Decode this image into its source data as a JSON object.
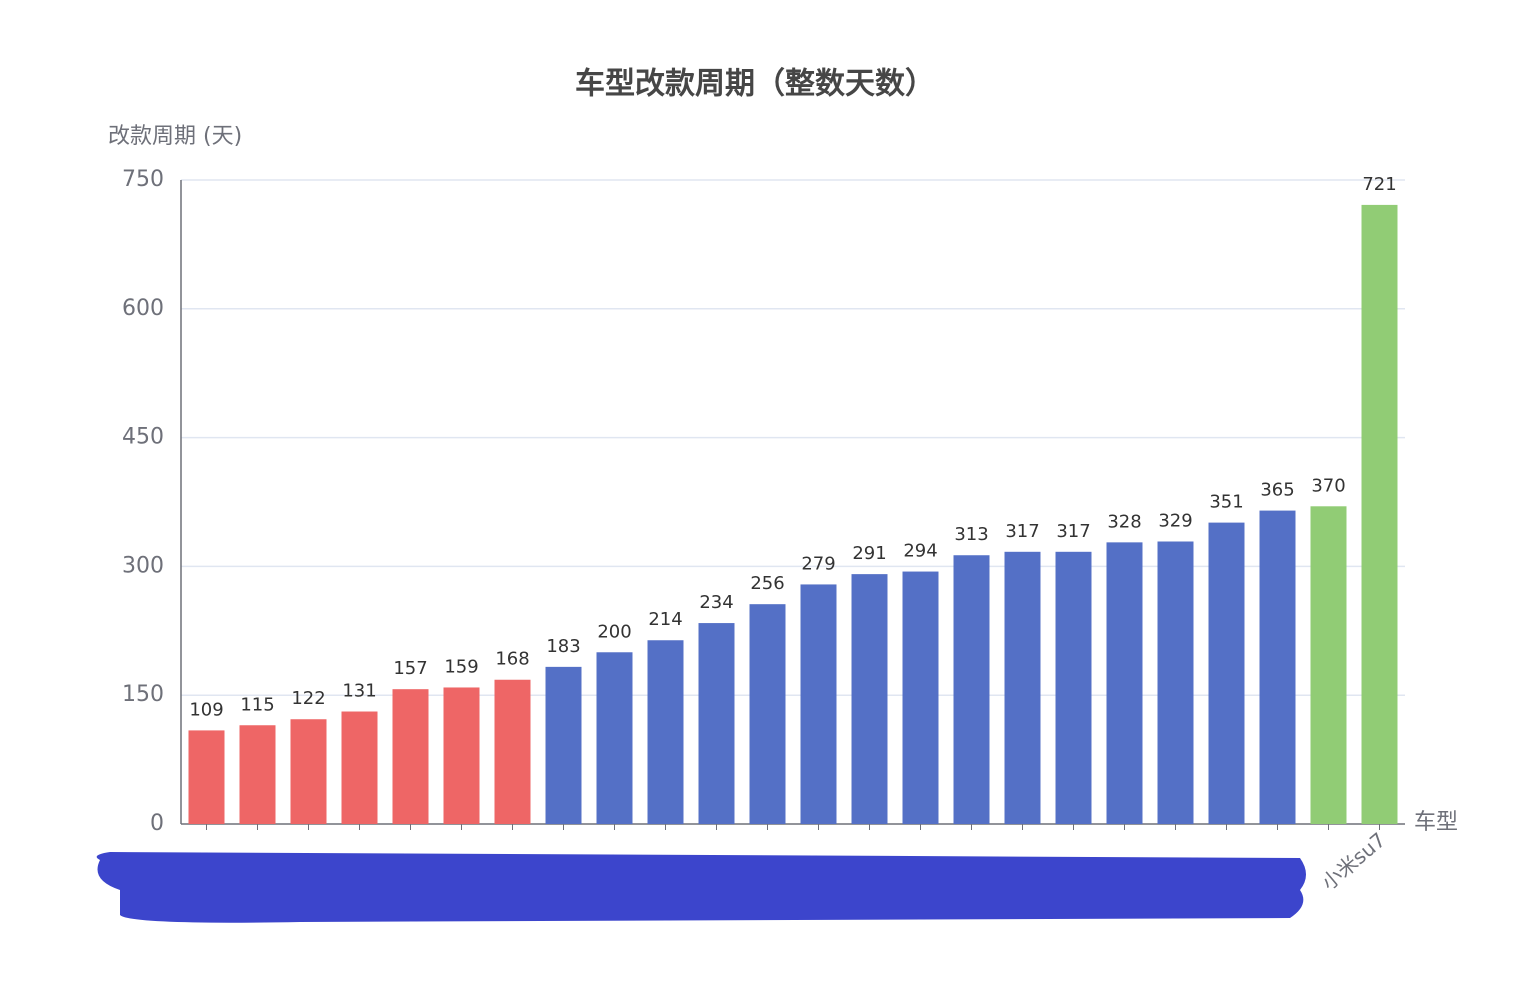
{
  "chart_data": {
    "type": "bar",
    "title": "车型改款周期（整数天数）",
    "y_label": "改款周期 (天)",
    "x_label": "车型",
    "categories": [
      null,
      null,
      null,
      null,
      null,
      null,
      null,
      null,
      null,
      null,
      null,
      null,
      null,
      null,
      null,
      null,
      null,
      null,
      null,
      null,
      null,
      null,
      null,
      "小米su7"
    ],
    "values": [
      109,
      115,
      122,
      131,
      157,
      159,
      168,
      183,
      200,
      214,
      234,
      256,
      279,
      291,
      294,
      313,
      317,
      317,
      328,
      329,
      351,
      365,
      370,
      721
    ],
    "colors": [
      "#ee6666",
      "#ee6666",
      "#ee6666",
      "#ee6666",
      "#ee6666",
      "#ee6666",
      "#ee6666",
      "#5470c6",
      "#5470c6",
      "#5470c6",
      "#5470c6",
      "#5470c6",
      "#5470c6",
      "#5470c6",
      "#5470c6",
      "#5470c6",
      "#5470c6",
      "#5470c6",
      "#5470c6",
      "#5470c6",
      "#5470c6",
      "#5470c6",
      "#91cc75",
      "#91cc75"
    ],
    "ylim": [
      0,
      750
    ],
    "yticks": [
      0,
      150,
      300,
      450,
      600,
      750
    ],
    "grid": true
  }
}
